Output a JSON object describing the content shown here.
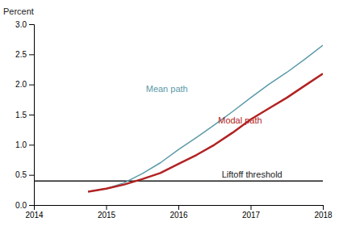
{
  "chart_data": {
    "type": "line",
    "y_label": "Percent",
    "xlim": [
      2014,
      2018
    ],
    "ylim": [
      0.0,
      3.0
    ],
    "xticks": [
      2014,
      2015,
      2016,
      2017,
      2018
    ],
    "yticks": [
      {
        "value": 0.0,
        "label": "0.0"
      },
      0.5,
      {
        "value": 1.0,
        "label": "1.0"
      },
      1.5,
      {
        "value": 2.0,
        "label": "2.0"
      },
      2.5,
      {
        "value": 3.0,
        "label": "3.0"
      }
    ],
    "x": [
      2014.75,
      2015.0,
      2015.25,
      2015.5,
      2015.75,
      2016.0,
      2016.25,
      2016.5,
      2016.75,
      2017.0,
      2017.25,
      2017.5,
      2017.75,
      2018.0
    ],
    "series": [
      {
        "color": "#5b9aa8",
        "values": [
          0.22,
          0.27,
          0.37,
          0.52,
          0.7,
          0.92,
          1.12,
          1.33,
          1.55,
          1.78,
          2.0,
          2.2,
          2.42,
          2.65
        ]
      },
      {
        "color": "#b22222",
        "values": [
          0.22,
          0.27,
          0.34,
          0.43,
          0.53,
          0.68,
          0.83,
          1.0,
          1.2,
          1.42,
          1.6,
          1.78,
          1.98,
          2.18
        ]
      }
    ],
    "hlines": [
      {
        "value": 0.4,
        "color": "#1a1a1a"
      }
    ],
    "annotations": [
      {
        "text": "Mean path",
        "x": 2015.55,
        "y": 1.85,
        "color": "#5b9aa8"
      },
      {
        "text": "Modal path",
        "x": 2016.55,
        "y": 1.32,
        "color": "#b22222"
      },
      {
        "text": "Liftoff threshold",
        "x": 2016.6,
        "y": 0.43,
        "color": "#1a1a1a"
      }
    ]
  }
}
